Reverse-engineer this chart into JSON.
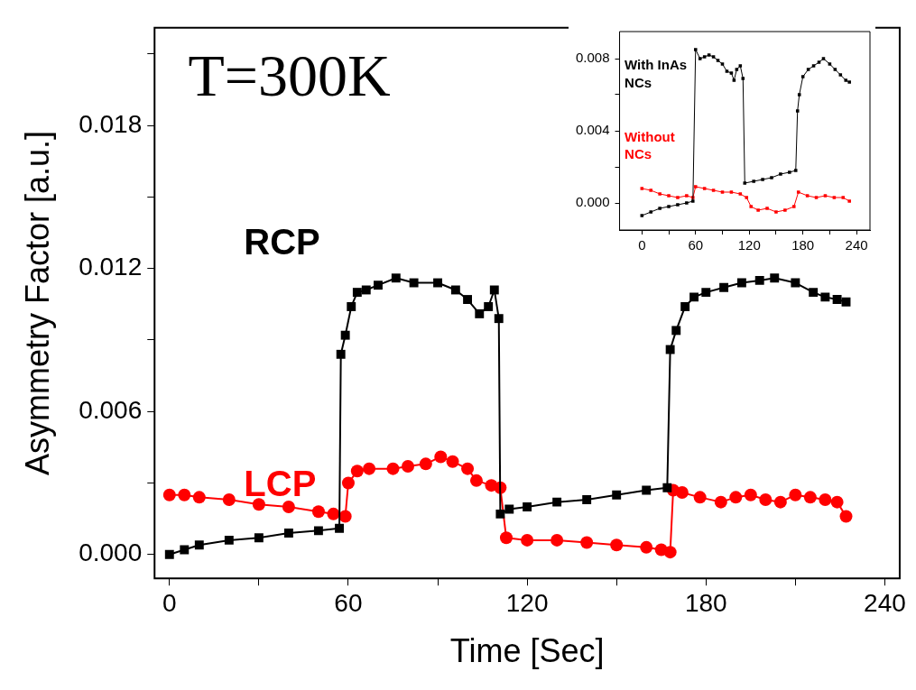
{
  "chart_data": [
    {
      "type": "line",
      "xlabel": "Time [Sec]",
      "ylabel": "Asymmetry Factor [a.u.]",
      "annotations": [
        "T=300K"
      ],
      "xlim": [
        -5,
        245
      ],
      "ylim": [
        -0.001,
        0.0221
      ],
      "xticks": [
        0,
        {
          "value": 30,
          "label": null
        },
        60,
        {
          "value": 90,
          "label": null
        },
        120,
        {
          "value": 150,
          "label": null
        },
        180,
        {
          "value": 210,
          "label": null
        },
        240
      ],
      "yticks": [
        {
          "value": 0,
          "label": "0.000"
        },
        {
          "value": 0.003,
          "label": null
        },
        {
          "value": 0.006,
          "label": "0.006"
        },
        {
          "value": 0.009,
          "label": null
        },
        {
          "value": 0.012,
          "label": "0.012"
        },
        {
          "value": 0.015,
          "label": null
        },
        {
          "value": 0.018,
          "label": "0.018"
        },
        {
          "value": 0.021,
          "label": null
        }
      ],
      "grid": false,
      "legend": false,
      "line_style": "solid",
      "series": [
        {
          "name": "RCP",
          "color": "#000000",
          "marker": "square",
          "x": [
            0,
            5,
            10,
            20,
            30,
            40,
            50,
            57,
            57.5,
            59,
            61,
            63,
            66,
            70,
            76,
            82,
            90,
            96,
            100,
            104,
            107,
            109,
            110.5,
            111,
            114,
            120,
            130,
            140,
            150,
            160,
            167,
            168,
            170,
            173,
            176,
            180,
            186,
            192,
            198,
            203,
            210,
            216,
            220,
            224,
            227
          ],
          "values": [
            0,
            0.0002,
            0.0004,
            0.0006,
            0.0007,
            0.0009,
            0.001,
            0.0011,
            0.0084,
            0.0092,
            0.0104,
            0.011,
            0.0111,
            0.0113,
            0.0116,
            0.0114,
            0.0114,
            0.0111,
            0.0107,
            0.0101,
            0.0104,
            0.0111,
            0.0099,
            0.0017,
            0.0019,
            0.002,
            0.0022,
            0.0023,
            0.0025,
            0.0027,
            0.0028,
            0.0086,
            0.0094,
            0.0104,
            0.0108,
            0.011,
            0.0112,
            0.0114,
            0.0115,
            0.0116,
            0.0114,
            0.011,
            0.0108,
            0.0107,
            0.0106
          ]
        },
        {
          "name": "LCP",
          "color": "#ff0000",
          "marker": "circle",
          "x": [
            0,
            5,
            10,
            20,
            30,
            40,
            50,
            55,
            59,
            60,
            63,
            67,
            75,
            80,
            86,
            91,
            95,
            100,
            103,
            108,
            111,
            113,
            120,
            130,
            140,
            150,
            160,
            165,
            168,
            169,
            172,
            178,
            185,
            190,
            195,
            200,
            205,
            210,
            215,
            220,
            224,
            227
          ],
          "values": [
            0.0025,
            0.0025,
            0.0024,
            0.0023,
            0.0021,
            0.002,
            0.0018,
            0.0017,
            0.0016,
            0.003,
            0.0035,
            0.0036,
            0.0036,
            0.0037,
            0.0038,
            0.0041,
            0.0039,
            0.0036,
            0.0031,
            0.0029,
            0.0028,
            0.0007,
            0.0006,
            0.0006,
            0.0005,
            0.0004,
            0.0003,
            0.0002,
            0.0001,
            0.0027,
            0.0026,
            0.0024,
            0.0022,
            0.0024,
            0.0025,
            0.0023,
            0.0022,
            0.0025,
            0.0024,
            0.0023,
            0.0022,
            0.0016
          ]
        }
      ]
    },
    {
      "type": "line",
      "xlim": [
        -25,
        255
      ],
      "ylim": [
        -0.0015,
        0.0095
      ],
      "xticks": [
        0,
        {
          "value": 30,
          "label": null
        },
        60,
        {
          "value": 90,
          "label": null
        },
        120,
        {
          "value": 150,
          "label": null
        },
        180,
        {
          "value": 210,
          "label": null
        },
        240
      ],
      "yticks": [
        {
          "value": 0,
          "label": "0.000"
        },
        {
          "value": 0.002,
          "label": null
        },
        {
          "value": 0.004,
          "label": "0.004"
        },
        {
          "value": 0.006,
          "label": null
        },
        {
          "value": 0.008,
          "label": "0.008"
        }
      ],
      "grid": false,
      "legend": false,
      "line_style": "solid",
      "series": [
        {
          "name": "With InAs NCs",
          "color": "#000000",
          "marker": "square",
          "x": [
            0,
            10,
            20,
            30,
            40,
            50,
            57,
            60,
            65,
            70,
            75,
            80,
            85,
            90,
            95,
            100,
            103,
            106,
            110,
            113,
            115,
            125,
            135,
            145,
            155,
            165,
            172,
            174,
            176,
            180,
            186,
            192,
            198,
            203,
            210,
            216,
            222,
            228,
            232
          ],
          "values": [
            -0.0007,
            -0.0005,
            -0.0003,
            -0.0002,
            -0.0001,
            0,
            0.0001,
            0.0085,
            0.008,
            0.0081,
            0.0082,
            0.0081,
            0.0079,
            0.0077,
            0.0073,
            0.0072,
            0.0068,
            0.0074,
            0.0076,
            0.0069,
            0.0011,
            0.0012,
            0.0013,
            0.0014,
            0.0016,
            0.0017,
            0.0018,
            0.0051,
            0.006,
            0.007,
            0.0074,
            0.0076,
            0.0078,
            0.008,
            0.0077,
            0.0074,
            0.0071,
            0.0068,
            0.0067
          ]
        },
        {
          "name": "Without NCs",
          "color": "#ff0000",
          "marker": "square",
          "x": [
            0,
            10,
            20,
            30,
            40,
            50,
            57,
            60,
            70,
            80,
            90,
            100,
            110,
            117,
            122,
            130,
            140,
            150,
            160,
            170,
            175,
            185,
            195,
            205,
            215,
            225,
            232
          ],
          "values": [
            0.0008,
            0.0007,
            0.0005,
            0.0004,
            0.0003,
            0.0004,
            0.0003,
            0.0009,
            0.0008,
            0.0007,
            0.0006,
            0.0006,
            0.0005,
            0.0003,
            -0.0002,
            -0.0004,
            -0.0003,
            -0.0005,
            -0.0004,
            -0.0002,
            0.0006,
            0.0004,
            0.0003,
            0.0004,
            0.0003,
            0.0003,
            0.0001
          ]
        }
      ]
    }
  ]
}
